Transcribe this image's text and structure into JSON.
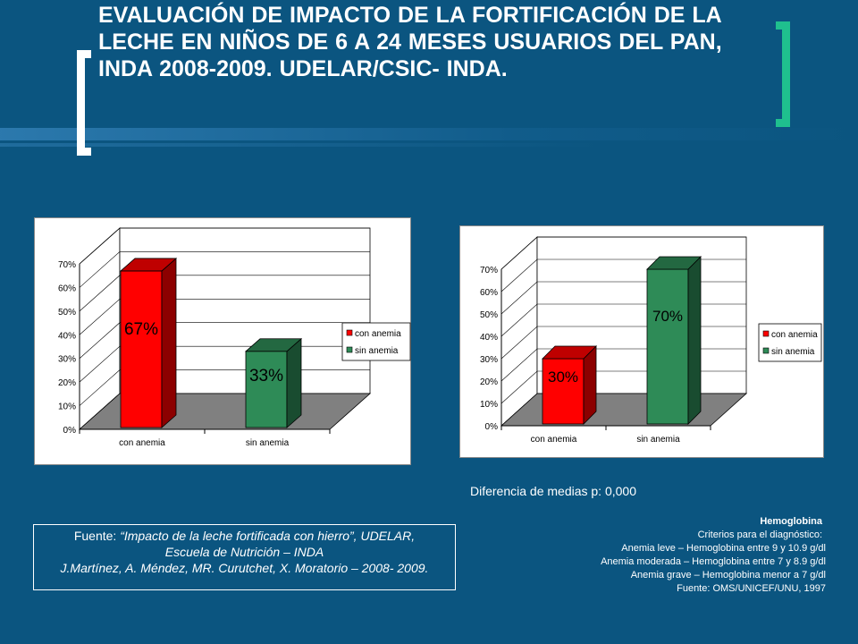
{
  "title": "EVALUACIÓN DE IMPACTO DE LA FORTIFICACIÓN DE LA LECHE EN NIÑOS DE 6 A 24 MESES USUARIOS DEL PAN, INDA 2008-2009. UDELAR/CSIC- INDA.",
  "colors": {
    "background": "#0b5580",
    "bracket_left": "#ffffff",
    "bracket_right": "#1fc08e",
    "red": "#ff0000",
    "green": "#2e8b57"
  },
  "chart_data": [
    {
      "type": "bar",
      "categories": [
        "con anemia",
        "sin anemia"
      ],
      "values": [
        67,
        33
      ],
      "data_labels": [
        "67%",
        "33%"
      ],
      "ylim": [
        0,
        70
      ],
      "yticks": [
        "0%",
        "10%",
        "20%",
        "30%",
        "40%",
        "50%",
        "60%",
        "70%"
      ],
      "legend": [
        "con anemia",
        "sin anemia"
      ],
      "legend_position": "right",
      "grid": true,
      "title": "",
      "xlabel": "",
      "ylabel": ""
    },
    {
      "type": "bar",
      "categories": [
        "con anemia",
        "sin anemia"
      ],
      "values": [
        30,
        70
      ],
      "data_labels": [
        "30%",
        "70%"
      ],
      "ylim": [
        0,
        70
      ],
      "yticks": [
        "0%",
        "10%",
        "20%",
        "30%",
        "40%",
        "50%",
        "60%",
        "70%"
      ],
      "legend": [
        "con anemia",
        "sin anemia"
      ],
      "legend_position": "right",
      "grid": true,
      "title": "",
      "xlabel": "",
      "ylabel": ""
    }
  ],
  "difference_text": "Diferencia de medias p: 0,000",
  "source": {
    "prefix": "Fuente: ",
    "title_italic": "“Impacto de la leche fortificada con hierro”, UDELAR,",
    "line2": "Escuela de Nutrición – INDA",
    "line3": "J.Martínez, A. Méndez, MR. Curutchet, X. Moratorio – 2008- 2009."
  },
  "hemoglobin": {
    "heading": "Hemoglobina",
    "criteria": "Criterios para el diagnóstico:",
    "lines": [
      "Anemia leve – Hemoglobina entre 9 y 10.9 g/dl",
      "Anemia moderada – Hemoglobina entre 7 y  8.9 g/dl",
      "Anemia grave – Hemoglobina menor a 7 g/dl",
      "Fuente: OMS/UNICEF/UNU,  1997"
    ]
  }
}
